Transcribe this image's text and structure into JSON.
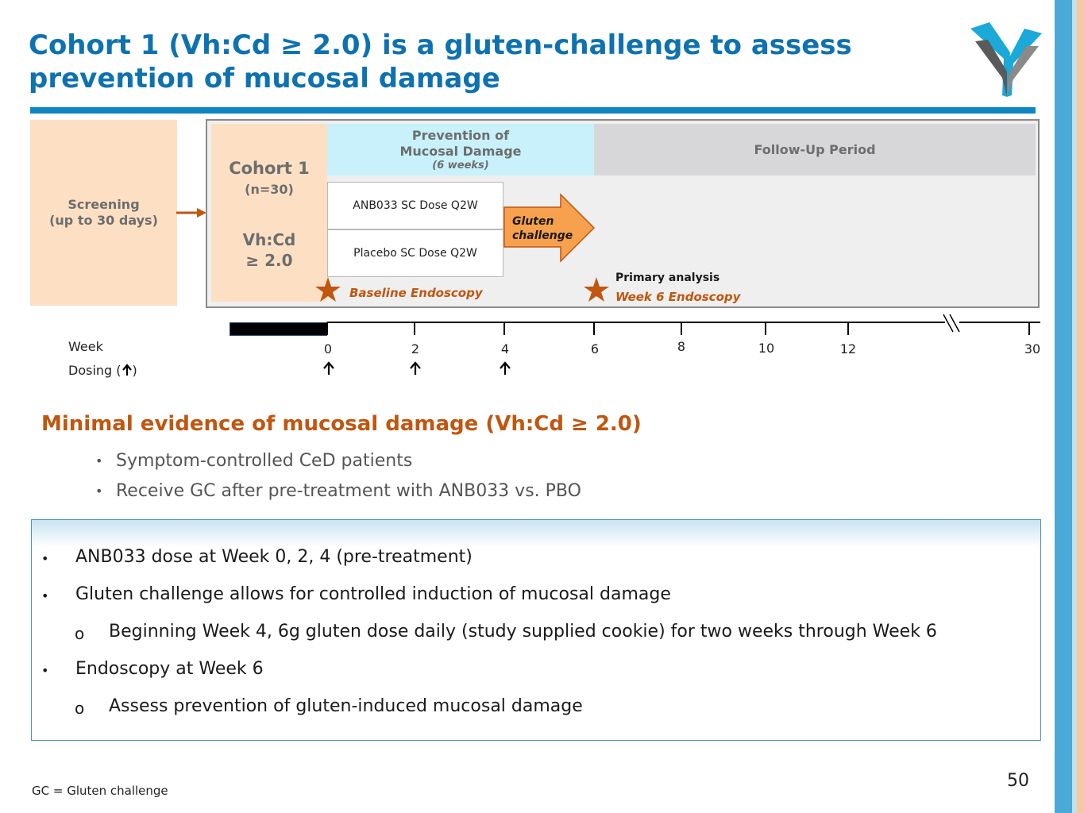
{
  "title": {
    "line1": "Cohort 1 (Vh:Cd ≥ 2.0) is a gluten-challenge to assess",
    "line2": "prevention of mucosal damage"
  },
  "colors": {
    "title_blue": "#0e72b0",
    "accent_orange": "#c0560f",
    "arrow_fill": "#f7a04d",
    "peach": "#fde0c4",
    "cyan": "#c8f1fb",
    "grey": "#d7d7d9"
  },
  "diagram": {
    "screening": {
      "line1": "Screening",
      "line2": "(up to 30 days)"
    },
    "cohort": {
      "title": "Cohort 1",
      "n": "(n=30)",
      "ratio_line1": "Vh:Cd",
      "ratio_line2": "≥ 2.0"
    },
    "prevention": {
      "line1": "Prevention of",
      "line2": "Mucosal Damage",
      "duration": "(6 weeks)"
    },
    "followup": "Follow-Up Period",
    "arms": [
      "ANB033 SC Dose Q2W",
      "Placebo SC Dose Q2W"
    ],
    "gluten_challenge": {
      "line1": "Gluten",
      "line2": "challenge"
    },
    "baseline_endoscopy": "Baseline Endoscopy",
    "primary_analysis": "Primary analysis",
    "week6_endoscopy": "Week 6 Endoscopy"
  },
  "timeline": {
    "week_label": "Week",
    "dosing_label": "Dosing (",
    "dosing_label_end": ")",
    "ticks": [
      "0",
      "2",
      "4",
      "6",
      "8",
      "10",
      "12",
      "30"
    ],
    "dosing_weeks": [
      "0",
      "2",
      "4"
    ]
  },
  "section": {
    "heading": "Minimal evidence of mucosal damage (Vh:Cd ≥ 2.0)",
    "bullets": [
      "Symptom-controlled CeD patients",
      "Receive GC after pre-treatment with ANB033 vs. PBO"
    ]
  },
  "info": {
    "items": [
      {
        "level": 1,
        "text": "ANB033 dose at Week 0, 2, 4 (pre-treatment)"
      },
      {
        "level": 1,
        "text": "Gluten challenge allows for controlled induction of mucosal damage"
      },
      {
        "level": 2,
        "text": "Beginning Week 4, 6g gluten dose daily (study supplied cookie) for two weeks through Week 6"
      },
      {
        "level": 1,
        "text": "Endoscopy at Week 6"
      },
      {
        "level": 2,
        "text": "Assess prevention of gluten-induced mucosal damage"
      }
    ],
    "bullet_symbol": "•",
    "sub_bullet_symbol": "o"
  },
  "footnote": "GC = Gluten challenge",
  "page_number": "50",
  "logo_icon": "chevron-v-logo-icon"
}
